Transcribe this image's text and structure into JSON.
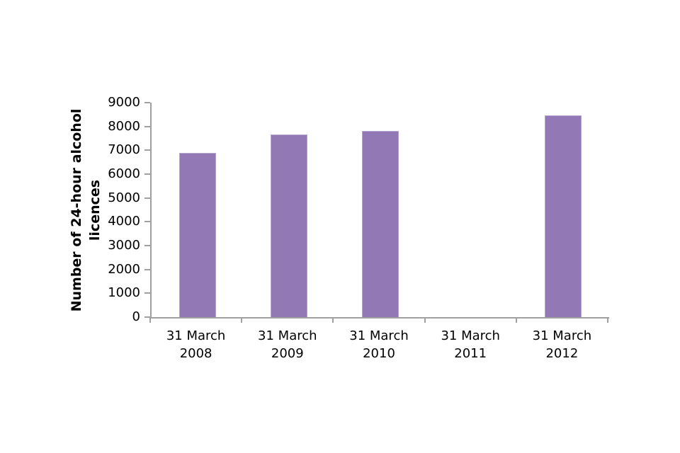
{
  "chart_data": {
    "type": "bar",
    "title": "",
    "categories": [
      {
        "line1": "31 March",
        "line2": "2008"
      },
      {
        "line1": "31 March",
        "line2": "2009"
      },
      {
        "line1": "31 March",
        "line2": "2010"
      },
      {
        "line1": "31 March",
        "line2": "2011"
      },
      {
        "line1": "31 March",
        "line2": "2012"
      }
    ],
    "values": [
      6900,
      7650,
      7800,
      null,
      8470
    ],
    "ylabel": "Number of 24-hour alcohol licences",
    "ylabel_lines": [
      "Number of 24-hour alcohol",
      "licences"
    ],
    "xlabel": "",
    "ylim": [
      0,
      9000
    ],
    "ytick_step": 1000,
    "ytick_labels": [
      "0",
      "1000",
      "2000",
      "3000",
      "4000",
      "5000",
      "6000",
      "7000",
      "8000",
      "9000"
    ],
    "grid": false,
    "legend": "none",
    "notes": "no bar shown for 31 March 2011",
    "colors": {
      "bar_fill": "#9278b5",
      "bar_border": "#b4a6d0",
      "axis": "#a0a0a0",
      "text": "#000000",
      "background": "#ffffff"
    }
  }
}
